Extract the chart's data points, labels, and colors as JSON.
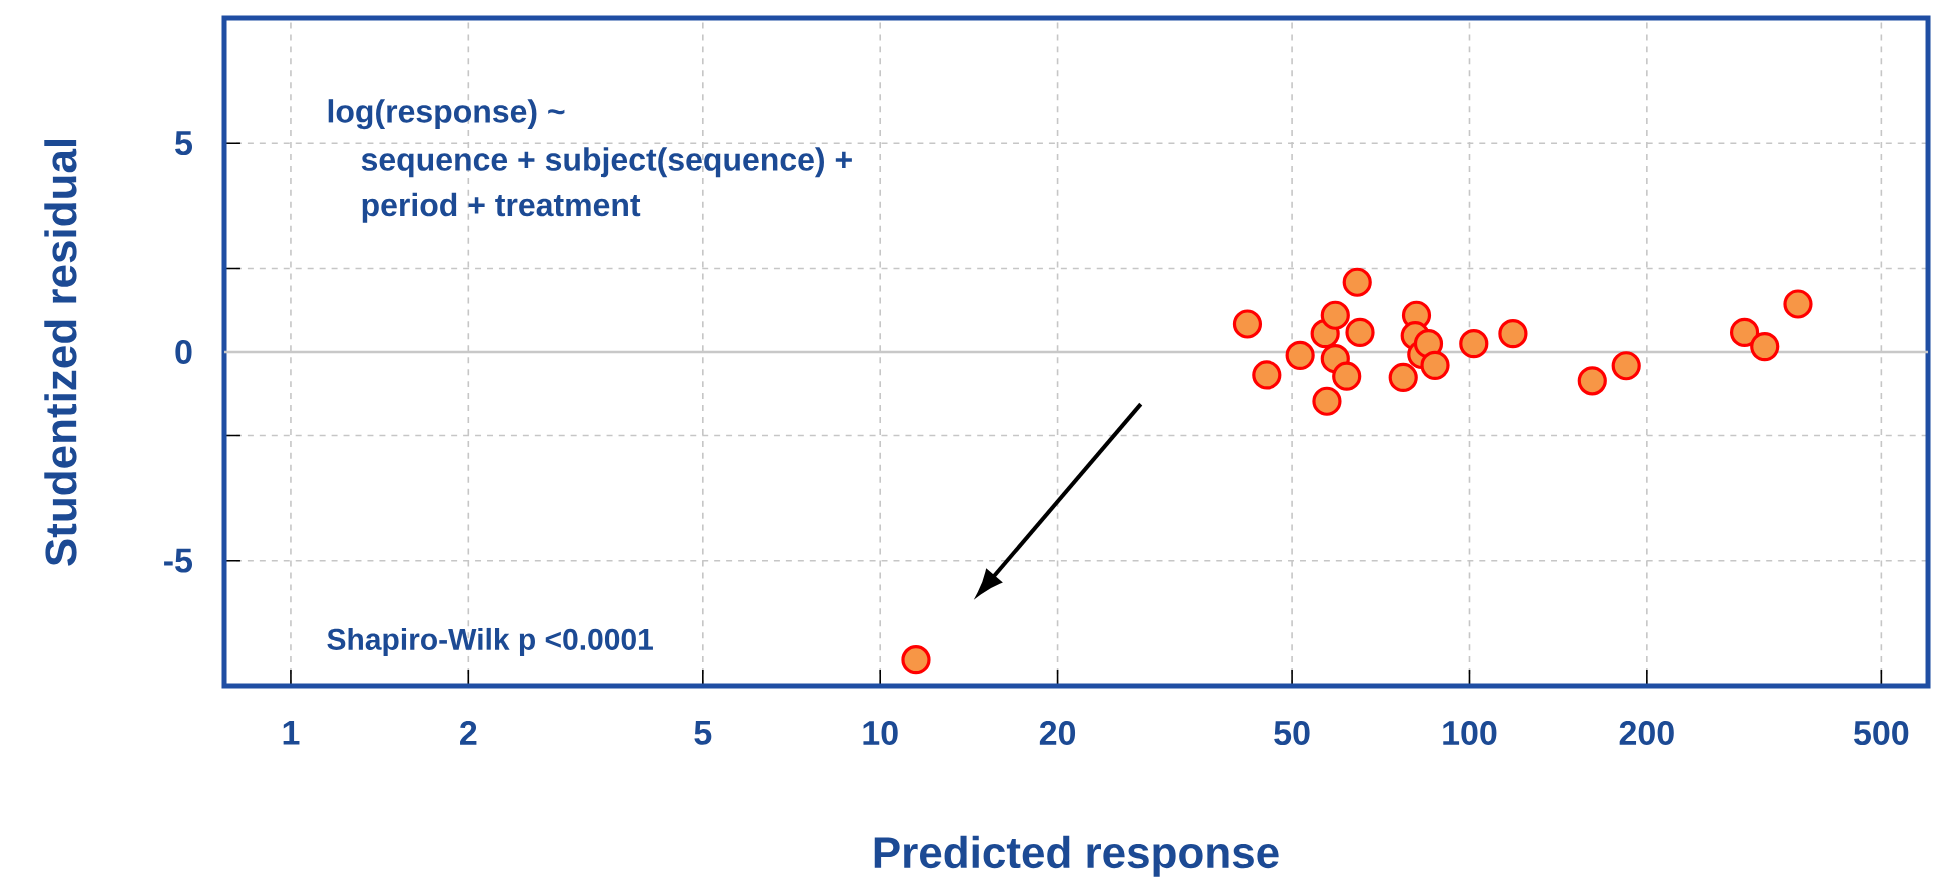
{
  "chart_data": {
    "type": "scatter",
    "xlabel": "Predicted response",
    "ylabel": "Studentized residual",
    "annotations": [
      "log(response) ~",
      "sequence + subject(sequence) +",
      "period + treatment",
      "Shapiro-Wilk p <0.0001"
    ],
    "x": [
      42.0,
      45.3,
      51.6,
      57.3,
      56.9,
      59.2,
      59.2,
      61.9,
      65.2,
      64.5,
      77.2,
      81.3,
      80.9,
      83.0,
      85.2,
      87.4,
      101.7,
      118.5,
      161.6,
      184.5,
      293,
      317,
      361,
      11.5
    ],
    "values": [
      0.67,
      -0.55,
      -0.08,
      -1.18,
      0.44,
      0.88,
      -0.16,
      -0.58,
      0.47,
      1.67,
      -0.61,
      0.88,
      0.39,
      -0.06,
      0.2,
      -0.32,
      0.2,
      0.44,
      -0.69,
      -0.33,
      0.47,
      0.13,
      1.15,
      -7.37
    ],
    "color": "#f79646",
    "log": "x",
    "grid": true,
    "xlim": [
      0.77,
      600
    ],
    "ylim": [
      -8,
      8
    ],
    "xticks": [
      1,
      2,
      5,
      10,
      20,
      50,
      100,
      200,
      500
    ],
    "yticks": [
      -5,
      {
        "value": -2,
        "label": null
      },
      0,
      {
        "value": 2,
        "label": null
      },
      5
    ],
    "ref_lines": [
      {
        "axis": "y",
        "value": 0,
        "color": "#c8c8c8"
      }
    ]
  }
}
